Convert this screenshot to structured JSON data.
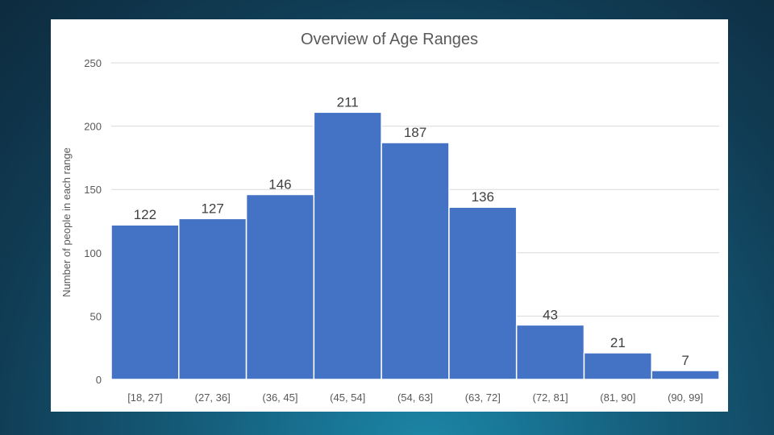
{
  "chart_data": {
    "type": "bar",
    "title": "Overview of Age Ranges",
    "xlabel": "",
    "ylabel": "Number of people in each range",
    "categories": [
      "[18, 27]",
      "(27, 36]",
      "(36, 45]",
      "(45, 54]",
      "(54, 63]",
      "(63, 72]",
      "(72, 81]",
      "(81, 90]",
      "(90, 99]"
    ],
    "values": [
      122,
      127,
      146,
      211,
      187,
      136,
      43,
      21,
      7
    ],
    "ylim": [
      0,
      250
    ],
    "yticks": [
      0,
      50,
      100,
      150,
      200,
      250
    ],
    "grid": true,
    "legend": "none",
    "bar_color": "#4472c4",
    "bar_edge_color": "#ffffff",
    "text_color": "#595959",
    "label_color": "#404040",
    "grid_color": "#d9d9d9"
  }
}
